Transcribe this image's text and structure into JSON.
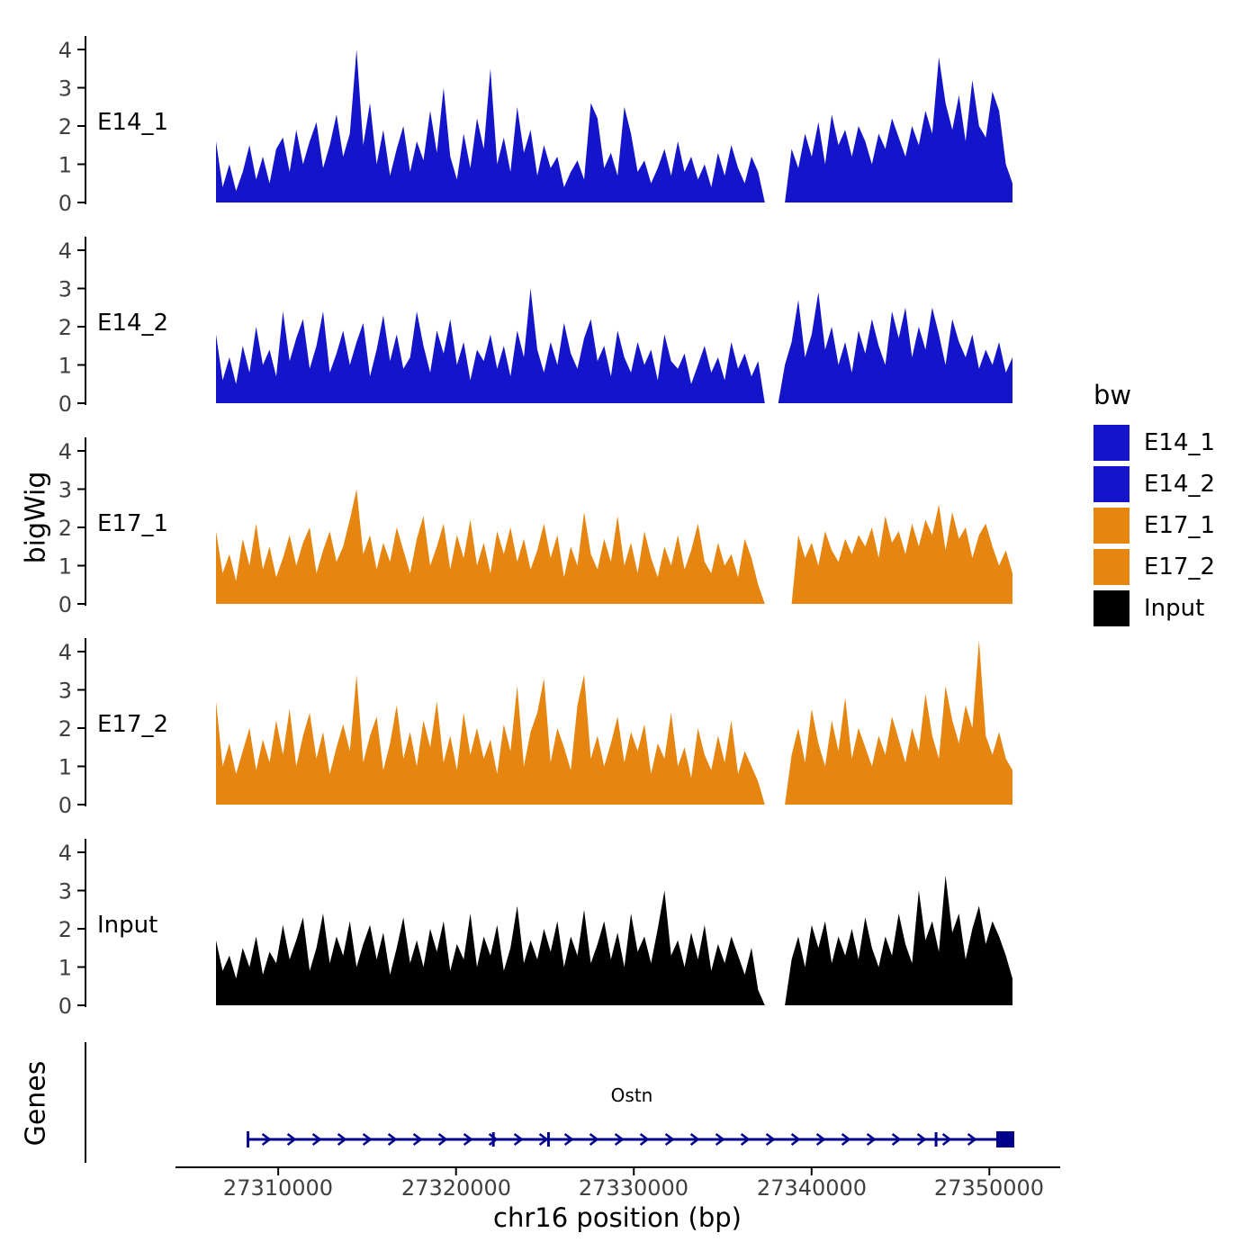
{
  "y_axis_label": "bigWig",
  "genes_panel_label": "Genes",
  "gene_track": {
    "gene_name": "Ostn",
    "strand": "+",
    "start": 27308300,
    "end": 27351400,
    "exon_marks": [
      27322100,
      27325200,
      27347000
    ],
    "color": "#00008B"
  },
  "legend": {
    "title": "bw",
    "entries": [
      {
        "label": "E14_1",
        "color": "#1414CB"
      },
      {
        "label": "E14_2",
        "color": "#1414CB"
      },
      {
        "label": "E17_1",
        "color": "#E6850F"
      },
      {
        "label": "E17_2",
        "color": "#E6850F"
      },
      {
        "label": "Input",
        "color": "#000000"
      }
    ]
  },
  "x_axis": {
    "title": "chr16 position (bp)",
    "ticks": [
      {
        "label": "27310000",
        "pos": 27310000
      },
      {
        "label": "27320000",
        "pos": 27320000
      },
      {
        "label": "27330000",
        "pos": 27330000
      },
      {
        "label": "27340000",
        "pos": 27340000
      },
      {
        "label": "27350000",
        "pos": 27350000
      }
    ]
  },
  "chart_data": {
    "type": "area",
    "title": "",
    "xlabel": "chr16 position (bp)",
    "ylabel": "bigWig",
    "x_start": 27306500,
    "x_end": 27351300,
    "y_ticks": [
      0,
      1,
      2,
      3,
      4
    ],
    "ylim": [
      0,
      4.5
    ],
    "axis_color": "#000000",
    "tick_text_color": "#404040",
    "tracks": [
      {
        "name": "E14_1",
        "color": "#1414CB",
        "values": [
          1.6,
          0.4,
          1.0,
          0.3,
          0.8,
          1.5,
          0.6,
          1.2,
          0.5,
          1.4,
          1.7,
          0.8,
          1.9,
          1.0,
          1.6,
          2.1,
          0.9,
          1.5,
          2.3,
          1.2,
          1.8,
          4.0,
          1.5,
          2.6,
          1.0,
          1.9,
          0.7,
          1.4,
          2.0,
          0.8,
          1.6,
          1.1,
          2.4,
          1.3,
          3.0,
          1.2,
          0.6,
          1.8,
          0.9,
          2.2,
          1.4,
          3.5,
          1.0,
          1.7,
          0.8,
          2.5,
          1.3,
          1.9,
          0.7,
          1.5,
          0.9,
          1.2,
          0.4,
          0.8,
          1.1,
          0.6,
          2.6,
          2.2,
          0.9,
          1.3,
          0.7,
          2.5,
          1.8,
          0.8,
          1.1,
          0.5,
          0.9,
          1.4,
          0.7,
          1.6,
          0.8,
          1.2,
          0.6,
          1.0,
          0.4,
          1.3,
          0.7,
          1.5,
          0.9,
          0.5,
          1.2,
          0.8,
          0.0,
          0.0,
          0.0,
          0.0,
          1.4,
          0.9,
          1.8,
          1.2,
          2.1,
          1.0,
          2.3,
          1.5,
          1.9,
          1.2,
          2.0,
          1.6,
          1.0,
          1.8,
          1.4,
          2.2,
          1.7,
          1.2,
          2.0,
          1.5,
          2.4,
          1.8,
          3.8,
          2.6,
          1.9,
          2.8,
          1.6,
          3.2,
          2.0,
          1.7,
          2.9,
          2.4,
          1.0,
          0.5
        ]
      },
      {
        "name": "E14_2",
        "color": "#1414CB",
        "values": [
          1.8,
          0.6,
          1.2,
          0.5,
          1.5,
          0.8,
          2.0,
          1.0,
          1.4,
          0.7,
          2.4,
          1.1,
          1.7,
          2.2,
          0.9,
          1.5,
          2.4,
          0.8,
          1.3,
          1.9,
          1.0,
          1.6,
          2.1,
          0.7,
          1.4,
          2.3,
          1.1,
          1.8,
          0.9,
          1.2,
          2.4,
          1.5,
          0.8,
          1.9,
          1.3,
          2.2,
          1.0,
          1.6,
          0.6,
          1.4,
          1.1,
          1.8,
          0.9,
          1.5,
          0.7,
          1.9,
          1.2,
          3.0,
          1.4,
          0.8,
          1.6,
          1.0,
          2.1,
          1.3,
          0.9,
          1.7,
          2.2,
          1.1,
          1.5,
          0.7,
          1.9,
          1.2,
          0.8,
          1.6,
          1.0,
          1.4,
          0.6,
          1.8,
          1.1,
          0.9,
          1.3,
          0.5,
          1.0,
          1.5,
          0.8,
          1.2,
          0.6,
          1.6,
          0.9,
          1.3,
          0.7,
          1.1,
          0.0,
          0.0,
          0.0,
          1.0,
          1.6,
          2.7,
          1.2,
          1.8,
          2.9,
          1.4,
          2.0,
          1.0,
          1.6,
          0.8,
          1.9,
          1.3,
          2.2,
          1.5,
          1.0,
          2.4,
          1.7,
          2.5,
          1.2,
          2.0,
          1.4,
          2.5,
          1.8,
          1.0,
          2.2,
          1.6,
          1.2,
          1.8,
          0.9,
          1.4,
          1.0,
          1.6,
          0.8,
          1.2
        ]
      },
      {
        "name": "E17_1",
        "color": "#E6850F",
        "values": [
          1.9,
          0.8,
          1.3,
          0.6,
          1.7,
          1.0,
          2.1,
          0.9,
          1.5,
          0.7,
          1.2,
          1.8,
          1.0,
          1.6,
          2.0,
          0.8,
          1.4,
          1.9,
          1.1,
          1.5,
          2.2,
          3.0,
          1.3,
          1.8,
          0.9,
          1.6,
          1.1,
          2.0,
          1.4,
          0.8,
          1.7,
          2.3,
          1.0,
          1.5,
          2.1,
          0.9,
          1.8,
          1.2,
          2.2,
          1.0,
          1.6,
          0.8,
          1.9,
          1.3,
          2.0,
          1.1,
          1.7,
          0.9,
          1.4,
          2.1,
          1.2,
          1.8,
          0.7,
          1.5,
          1.0,
          2.4,
          1.3,
          0.9,
          1.7,
          1.1,
          2.3,
          1.0,
          1.6,
          0.8,
          1.9,
          1.2,
          0.7,
          1.5,
          1.0,
          1.8,
          0.9,
          1.4,
          2.1,
          1.1,
          0.8,
          1.6,
          1.0,
          1.3,
          0.7,
          1.7,
          1.2,
          0.5,
          0.0,
          0.0,
          0.0,
          0.0,
          0.0,
          1.8,
          1.2,
          1.6,
          1.0,
          1.9,
          1.4,
          1.1,
          1.7,
          1.3,
          1.8,
          1.5,
          2.0,
          1.2,
          2.3,
          1.6,
          1.9,
          1.3,
          2.1,
          1.5,
          2.2,
          1.8,
          2.6,
          1.4,
          2.4,
          1.7,
          2.0,
          1.2,
          1.8,
          2.1,
          1.5,
          1.0,
          1.4,
          0.8
        ]
      },
      {
        "name": "E17_2",
        "color": "#E6850F",
        "values": [
          2.7,
          1.0,
          1.6,
          0.8,
          1.4,
          2.0,
          0.9,
          1.7,
          1.1,
          2.2,
          1.3,
          2.5,
          1.0,
          1.8,
          2.4,
          1.2,
          1.9,
          0.8,
          1.5,
          2.1,
          1.4,
          3.4,
          1.1,
          1.8,
          2.3,
          0.9,
          1.6,
          2.6,
          1.2,
          1.9,
          1.0,
          2.2,
          1.5,
          2.7,
          1.1,
          1.8,
          0.9,
          2.4,
          1.3,
          2.0,
          1.2,
          1.7,
          0.8,
          2.1,
          1.4,
          3.1,
          1.0,
          1.9,
          2.4,
          3.3,
          1.1,
          2.0,
          1.5,
          0.9,
          2.6,
          3.4,
          1.2,
          1.8,
          1.0,
          1.6,
          2.3,
          1.1,
          1.9,
          1.4,
          2.1,
          0.8,
          1.6,
          1.2,
          2.4,
          1.0,
          1.5,
          0.7,
          2.0,
          1.3,
          0.9,
          1.8,
          1.1,
          2.2,
          0.8,
          1.4,
          1.0,
          0.6,
          0.0,
          0.0,
          0.0,
          0.0,
          1.3,
          2.0,
          1.1,
          2.5,
          1.6,
          1.0,
          2.2,
          1.4,
          2.8,
          1.2,
          2.0,
          1.5,
          1.0,
          1.8,
          1.3,
          2.3,
          1.7,
          1.1,
          2.0,
          1.4,
          2.9,
          1.8,
          1.2,
          3.1,
          2.2,
          1.6,
          2.6,
          2.0,
          4.3,
          1.8,
          1.3,
          1.9,
          1.2,
          0.9
        ]
      },
      {
        "name": "Input",
        "color": "#000000",
        "values": [
          1.7,
          0.9,
          1.3,
          0.7,
          1.5,
          1.0,
          1.8,
          0.8,
          1.4,
          1.1,
          2.1,
          1.2,
          1.7,
          2.3,
          0.9,
          1.5,
          2.4,
          1.1,
          1.8,
          1.3,
          2.2,
          1.0,
          1.6,
          2.1,
          1.2,
          1.9,
          0.8,
          1.5,
          2.3,
          1.1,
          1.7,
          1.0,
          2.0,
          1.4,
          2.2,
          0.9,
          1.6,
          1.2,
          2.4,
          1.0,
          1.8,
          1.3,
          2.1,
          0.9,
          1.5,
          2.6,
          1.1,
          1.7,
          1.2,
          2.0,
          1.4,
          2.2,
          1.0,
          1.8,
          1.3,
          2.5,
          1.1,
          1.6,
          2.2,
          1.2,
          1.9,
          1.0,
          2.4,
          1.4,
          1.8,
          1.1,
          2.0,
          3.0,
          1.3,
          1.7,
          1.0,
          1.9,
          1.2,
          2.1,
          0.9,
          1.6,
          1.1,
          1.8,
          1.3,
          0.8,
          1.5,
          0.4,
          0.0,
          0.0,
          0.0,
          0.0,
          1.2,
          1.8,
          1.0,
          2.1,
          1.5,
          2.2,
          1.1,
          1.8,
          1.3,
          2.0,
          1.2,
          2.3,
          1.5,
          1.0,
          1.8,
          1.3,
          2.4,
          1.6,
          1.1,
          3.0,
          1.7,
          2.2,
          1.4,
          3.4,
          1.9,
          2.4,
          1.2,
          2.0,
          2.6,
          1.6,
          2.2,
          1.8,
          1.3,
          0.7
        ]
      }
    ]
  }
}
